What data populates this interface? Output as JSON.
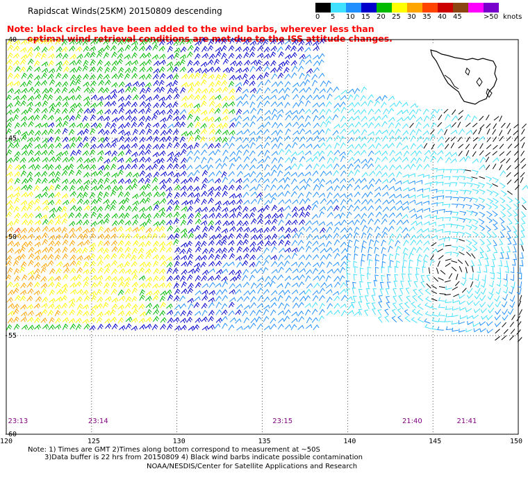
{
  "header": {
    "title": "Rapidscat Winds(25KM) 20150809 descending",
    "note_line1": "Note: black circles have been added to the wind barbs, wherever less than",
    "note_line2": "optimal wind retrieval conditions are met due to the ISS attitude changes."
  },
  "legend": {
    "unit_label": "knots",
    "swatches": [
      {
        "label": "0",
        "color": "#000000"
      },
      {
        "label": "5",
        "color": "#40e0ff"
      },
      {
        "label": "10",
        "color": "#2090ff"
      },
      {
        "label": "15",
        "color": "#0000cc"
      },
      {
        "label": "20",
        "color": "#00bb00"
      },
      {
        "label": "25",
        "color": "#ffff00"
      },
      {
        "label": "30",
        "color": "#ffa500"
      },
      {
        "label": "35",
        "color": "#ff4400"
      },
      {
        "label": "40",
        "color": "#cc0000"
      },
      {
        "label": "45",
        "color": "#8b4513"
      },
      {
        "label": "",
        "color": "#ff00ff"
      },
      {
        "label": ">50",
        "color": "#7700cc"
      }
    ]
  },
  "axes": {
    "lon_ticks": [
      "120",
      "125",
      "130",
      "135",
      "140",
      "145",
      "150"
    ],
    "lat_ticks": [
      "-40",
      "-45",
      "-50",
      "-55",
      "-60"
    ]
  },
  "times": [
    {
      "label": "23:13",
      "lon": 120.1
    },
    {
      "label": "23:14",
      "lon": 124.8
    },
    {
      "label": "23:15",
      "lon": 135.6
    },
    {
      "label": "21:40",
      "lon": 143.2
    },
    {
      "label": "21:41",
      "lon": 146.4
    }
  ],
  "footer": {
    "line1": "Note: 1) Times are GMT 2)Times along bottom correspond to measurement at ~50S",
    "line2": "3)Data buffer is 22 hrs from 20150809 4) Black wind barbs indicate possible contamination",
    "line3": "NOAA/NESDIS/Center for Satellite Applications and Research"
  },
  "map": {
    "lon_range": [
      120,
      150
    ],
    "lat_range": [
      -60,
      -40
    ],
    "inset_feature": "Tasmania coastline"
  }
}
